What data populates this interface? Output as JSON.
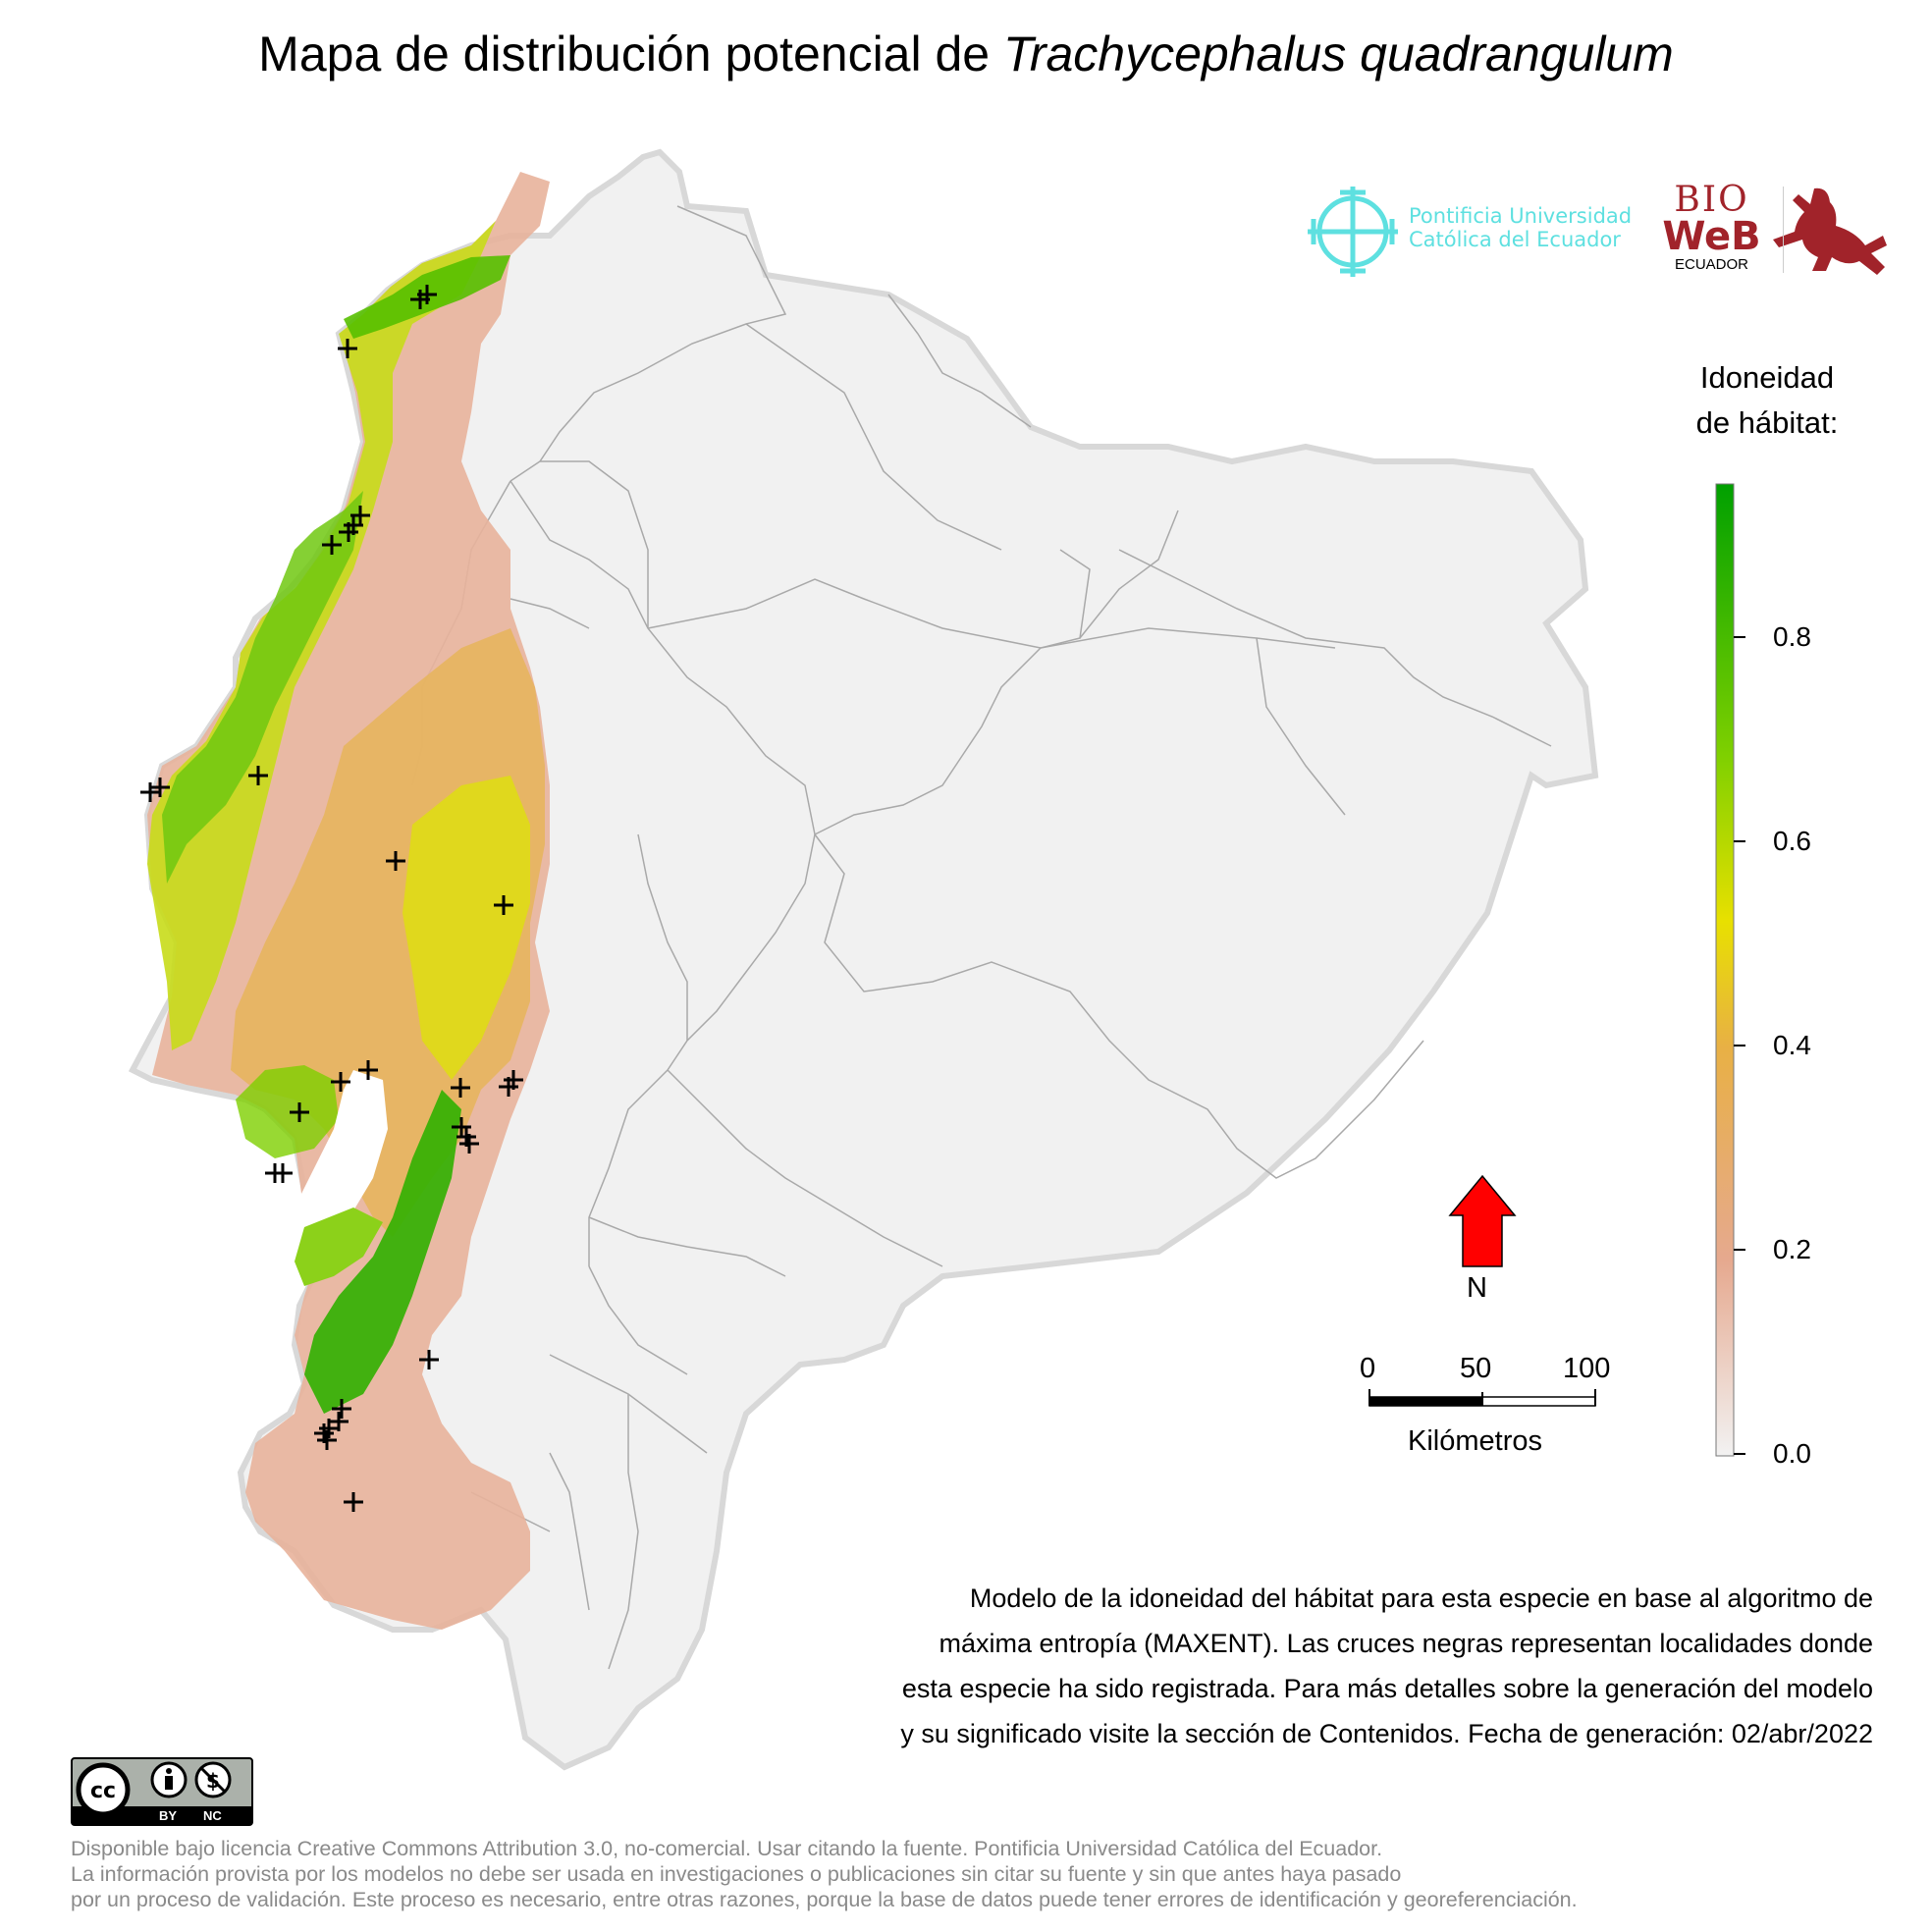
{
  "title": {
    "prefix": "Mapa de distribución potencial de ",
    "species": "Trachycephalus quadrangulum"
  },
  "logos": {
    "puce_line1": "Pontificia Universidad",
    "puce_line2": "Católica del Ecuador",
    "bioweb_bio": "BIO",
    "bioweb_web": "WeB",
    "bioweb_sub": "ECUADOR",
    "colors": {
      "puce": "#5ee0e0",
      "bioweb": "#a1232a"
    }
  },
  "legend": {
    "title_line1": "Idoneidad",
    "title_line2": "de hábitat:",
    "ticks": [
      "0.0",
      "0.2",
      "0.4",
      "0.6",
      "0.8"
    ],
    "tick_values": [
      0.0,
      0.2,
      0.4,
      0.6,
      0.8
    ],
    "range": [
      0,
      0.95
    ],
    "colors": [
      "#f2f2f2",
      "#e6a98f",
      "#e8b045",
      "#e8e000",
      "#7fd000",
      "#00a000"
    ]
  },
  "north_arrow": {
    "label": "N",
    "color": "#ff0000"
  },
  "scale_bar": {
    "labels": [
      "0",
      "50",
      "100"
    ],
    "unit": "Kilómetros"
  },
  "description": {
    "line1": "Modelo de la idoneidad del hábitat para esta especie en base al algoritmo de",
    "line2": "máxima entropía (MAXENT). Las cruces negras representan localidades donde",
    "line3": "esta especie ha sido registrada. Para más detalles sobre la generación del modelo",
    "line4": "y su significado visite la sección de Contenidos. Fecha de generación: 02/abr/2022"
  },
  "license_badge": {
    "by": "BY",
    "nc": "NC"
  },
  "footer": {
    "line1": "Disponible bajo licencia Creative Commons Attribution 3.0, no-comercial. Usar citando la fuente. Pontificia Universidad Católica del Ecuador.",
    "line2": "La información provista por los modelos no debe ser usada en investigaciones o publicaciones sin citar su fuente y sin que antes haya pasado",
    "line3": "por un proceso de validación. Este proceso es necesario, entre otras razones, porque la base de datos puede tener errores de identificación y georeferenciación."
  }
}
